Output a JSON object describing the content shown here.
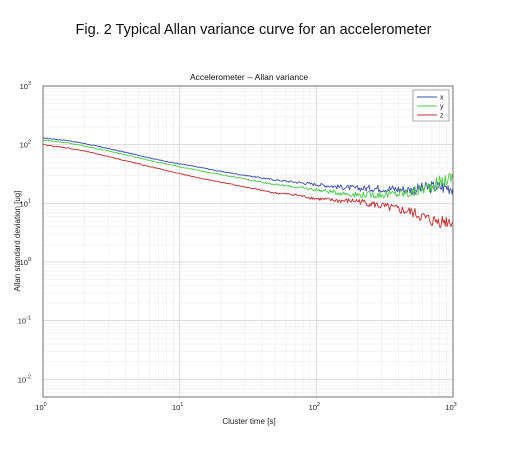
{
  "figure": {
    "caption": "Fig. 2 Typical Allan variance curve for an accelerometer"
  },
  "chart_data": {
    "type": "line",
    "title": "Accelerometer -- Allan variance",
    "xlabel": "Cluster time [s]",
    "ylabel": "Allan standard deviation [ug]",
    "xscale": "log",
    "yscale": "log",
    "xlim": [
      1,
      1000
    ],
    "ylim": [
      0.005,
      1000
    ],
    "x_ticks": [
      {
        "base": "10",
        "exp": "0"
      },
      {
        "base": "10",
        "exp": "1"
      },
      {
        "base": "10",
        "exp": "2"
      },
      {
        "base": "10",
        "exp": "3"
      }
    ],
    "y_ticks": [
      {
        "base": "10",
        "exp": "-2"
      },
      {
        "base": "10",
        "exp": "-1"
      },
      {
        "base": "10",
        "exp": "0"
      },
      {
        "base": "10",
        "exp": "1"
      },
      {
        "base": "10",
        "exp": "2"
      },
      {
        "base": "10",
        "exp": "3"
      }
    ],
    "grid": true,
    "legend_position": "top-right",
    "series": [
      {
        "name": "x",
        "color": "#3b4fa8",
        "x": [
          1,
          1.5,
          2,
          3,
          5,
          7,
          10,
          15,
          20,
          30,
          50,
          70,
          100,
          150,
          200,
          300,
          500,
          700,
          1000
        ],
        "y": [
          130,
          118,
          105,
          86,
          66,
          55,
          47,
          40,
          35,
          30,
          25,
          23,
          21,
          19,
          18,
          18,
          17,
          19,
          19
        ]
      },
      {
        "name": "y",
        "color": "#4cc84c",
        "x": [
          1,
          1.5,
          2,
          3,
          5,
          7,
          10,
          15,
          20,
          30,
          50,
          70,
          100,
          150,
          200,
          300,
          500,
          700,
          1000
        ],
        "y": [
          120,
          108,
          95,
          78,
          60,
          50,
          42,
          35,
          31,
          26,
          21,
          19,
          17,
          15,
          14,
          14,
          15,
          20,
          28
        ]
      },
      {
        "name": "z",
        "color": "#c03030",
        "x": [
          1,
          1.5,
          2,
          3,
          5,
          7,
          10,
          15,
          20,
          30,
          50,
          70,
          100,
          150,
          200,
          300,
          500,
          700,
          1000
        ],
        "y": [
          100,
          88,
          78,
          63,
          47,
          39,
          32,
          26,
          23,
          19,
          15,
          14,
          12,
          11,
          11,
          9,
          7,
          5,
          5
        ]
      }
    ]
  }
}
